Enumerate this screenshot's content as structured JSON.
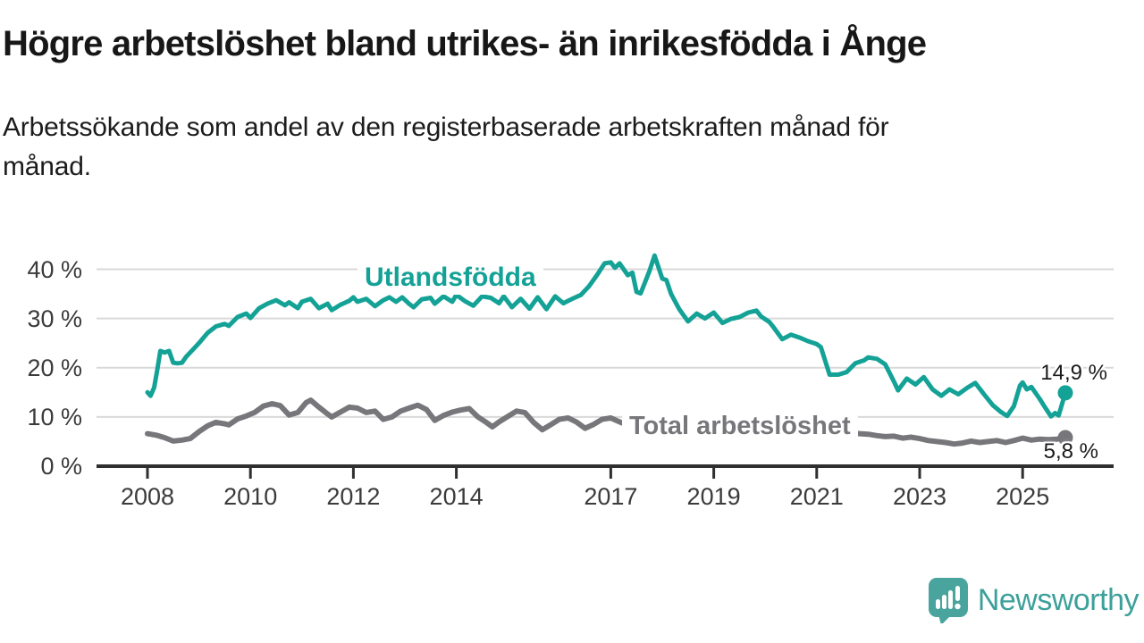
{
  "title": "Högre arbetslöshet bland utrikes- än inrikesfödda i Ånge",
  "subtitle_line1": "Arbetssökande som andel av den registerbaserade arbetskraften månad för",
  "subtitle_line2": "månad.",
  "logo": {
    "text": "Newsworthy"
  },
  "colors": {
    "teal": "#14a296",
    "grey": "#77777b",
    "logo_teal": "#49a49d",
    "axis_text": "#3b3b3b",
    "gridline": "#d9d9d9",
    "axis_line": "#2f2f2f",
    "title_text": "#171717"
  },
  "chart_data": {
    "type": "line",
    "title": "Högre arbetslöshet bland utrikes- än inrikesfödda i Ånge",
    "subtitle": "Arbetssökande som andel av den registerbaserade arbetskraften månad för månad.",
    "xlabel": "",
    "ylabel": "",
    "grid": "horizontal",
    "legend_position": "inline-labels",
    "x_unit": "decimal year, monthly data 2008 - late 2025",
    "y_unit": "percent of registered labour force",
    "ylim": [
      0,
      45
    ],
    "xlim": [
      2007.1,
      2026.7
    ],
    "y_ticks": [
      0,
      10,
      20,
      30,
      40
    ],
    "y_tick_labels": [
      "0 %",
      "10 %",
      "20 %",
      "30 %",
      "40 %"
    ],
    "x_ticks": [
      2008,
      2010,
      2012,
      2014,
      2017,
      2019,
      2021,
      2023,
      2025
    ],
    "x_tick_labels": [
      "2008",
      "2010",
      "2012",
      "2014",
      "2017",
      "2019",
      "2021",
      "2023",
      "2025"
    ],
    "series": [
      {
        "name": "Utlandsfödda",
        "color": "#14a296",
        "end_value": 14.9,
        "end_label": "14,9 %",
        "points": [
          [
            2008.0,
            15.0
          ],
          [
            2008.06,
            14.3
          ],
          [
            2008.13,
            16.0
          ],
          [
            2008.19,
            19.5
          ],
          [
            2008.25,
            23.4
          ],
          [
            2008.33,
            23.1
          ],
          [
            2008.42,
            23.4
          ],
          [
            2008.5,
            21.0
          ],
          [
            2008.58,
            20.9
          ],
          [
            2008.67,
            21.0
          ],
          [
            2008.75,
            22.2
          ],
          [
            2008.83,
            23.1
          ],
          [
            2008.92,
            24.1
          ],
          [
            2009.0,
            25.0
          ],
          [
            2009.17,
            27.1
          ],
          [
            2009.33,
            28.4
          ],
          [
            2009.5,
            28.9
          ],
          [
            2009.58,
            28.5
          ],
          [
            2009.75,
            30.3
          ],
          [
            2009.92,
            31.0
          ],
          [
            2010.0,
            30.1
          ],
          [
            2010.17,
            32.1
          ],
          [
            2010.33,
            33.0
          ],
          [
            2010.5,
            33.7
          ],
          [
            2010.67,
            32.7
          ],
          [
            2010.75,
            33.3
          ],
          [
            2010.92,
            32.1
          ],
          [
            2011.0,
            33.4
          ],
          [
            2011.17,
            34.0
          ],
          [
            2011.33,
            32.1
          ],
          [
            2011.5,
            33.0
          ],
          [
            2011.58,
            31.7
          ],
          [
            2011.75,
            32.8
          ],
          [
            2011.92,
            33.6
          ],
          [
            2012.0,
            34.3
          ],
          [
            2012.08,
            33.4
          ],
          [
            2012.25,
            34.0
          ],
          [
            2012.42,
            32.5
          ],
          [
            2012.58,
            33.7
          ],
          [
            2012.7,
            34.3
          ],
          [
            2012.83,
            33.4
          ],
          [
            2012.95,
            34.3
          ],
          [
            2013.08,
            33.0
          ],
          [
            2013.17,
            32.3
          ],
          [
            2013.33,
            33.9
          ],
          [
            2013.5,
            34.2
          ],
          [
            2013.58,
            33.0
          ],
          [
            2013.75,
            34.5
          ],
          [
            2013.92,
            33.4
          ],
          [
            2014.0,
            34.8
          ],
          [
            2014.17,
            33.5
          ],
          [
            2014.33,
            32.6
          ],
          [
            2014.5,
            34.5
          ],
          [
            2014.67,
            34.2
          ],
          [
            2014.83,
            33.1
          ],
          [
            2014.92,
            34.5
          ],
          [
            2015.08,
            32.3
          ],
          [
            2015.25,
            34.0
          ],
          [
            2015.42,
            32.0
          ],
          [
            2015.58,
            34.3
          ],
          [
            2015.75,
            31.9
          ],
          [
            2015.92,
            34.5
          ],
          [
            2016.08,
            33.1
          ],
          [
            2016.25,
            34.0
          ],
          [
            2016.42,
            34.8
          ],
          [
            2016.58,
            36.6
          ],
          [
            2016.75,
            39.1
          ],
          [
            2016.88,
            41.2
          ],
          [
            2017.0,
            41.4
          ],
          [
            2017.08,
            40.3
          ],
          [
            2017.17,
            41.2
          ],
          [
            2017.33,
            38.8
          ],
          [
            2017.42,
            39.3
          ],
          [
            2017.5,
            35.4
          ],
          [
            2017.58,
            35.1
          ],
          [
            2017.75,
            39.6
          ],
          [
            2017.85,
            42.8
          ],
          [
            2017.94,
            40.0
          ],
          [
            2018.0,
            38.1
          ],
          [
            2018.08,
            37.8
          ],
          [
            2018.17,
            35.0
          ],
          [
            2018.33,
            31.9
          ],
          [
            2018.5,
            29.4
          ],
          [
            2018.67,
            31.0
          ],
          [
            2018.83,
            30.0
          ],
          [
            2019.0,
            31.2
          ],
          [
            2019.17,
            29.1
          ],
          [
            2019.33,
            29.9
          ],
          [
            2019.5,
            30.3
          ],
          [
            2019.67,
            31.2
          ],
          [
            2019.83,
            31.6
          ],
          [
            2019.92,
            30.4
          ],
          [
            2020.08,
            29.3
          ],
          [
            2020.17,
            28.1
          ],
          [
            2020.33,
            25.8
          ],
          [
            2020.5,
            26.7
          ],
          [
            2020.67,
            26.1
          ],
          [
            2020.83,
            25.4
          ],
          [
            2021.0,
            24.8
          ],
          [
            2021.08,
            24.2
          ],
          [
            2021.25,
            18.6
          ],
          [
            2021.42,
            18.6
          ],
          [
            2021.58,
            19.1
          ],
          [
            2021.75,
            20.9
          ],
          [
            2021.92,
            21.5
          ],
          [
            2022.0,
            22.1
          ],
          [
            2022.17,
            21.8
          ],
          [
            2022.33,
            20.7
          ],
          [
            2022.5,
            17.2
          ],
          [
            2022.58,
            15.4
          ],
          [
            2022.75,
            17.8
          ],
          [
            2022.92,
            16.6
          ],
          [
            2023.08,
            18.1
          ],
          [
            2023.25,
            15.6
          ],
          [
            2023.42,
            14.3
          ],
          [
            2023.58,
            15.6
          ],
          [
            2023.75,
            14.6
          ],
          [
            2023.92,
            15.9
          ],
          [
            2024.08,
            16.9
          ],
          [
            2024.25,
            14.6
          ],
          [
            2024.42,
            12.4
          ],
          [
            2024.58,
            11.0
          ],
          [
            2024.7,
            10.2
          ],
          [
            2024.83,
            12.2
          ],
          [
            2024.95,
            16.4
          ],
          [
            2025.0,
            17.0
          ],
          [
            2025.08,
            15.6
          ],
          [
            2025.17,
            16.1
          ],
          [
            2025.33,
            13.7
          ],
          [
            2025.42,
            12.2
          ],
          [
            2025.55,
            10.1
          ],
          [
            2025.63,
            10.8
          ],
          [
            2025.7,
            10.3
          ],
          [
            2025.83,
            14.9
          ]
        ]
      },
      {
        "name": "Total arbetslöshet",
        "color": "#77777b",
        "end_value": 5.8,
        "end_label": "5,8 %",
        "points": [
          [
            2008.0,
            6.6
          ],
          [
            2008.17,
            6.3
          ],
          [
            2008.33,
            5.8
          ],
          [
            2008.5,
            5.1
          ],
          [
            2008.67,
            5.3
          ],
          [
            2008.83,
            5.6
          ],
          [
            2009.0,
            7.0
          ],
          [
            2009.17,
            8.2
          ],
          [
            2009.33,
            8.9
          ],
          [
            2009.5,
            8.6
          ],
          [
            2009.58,
            8.4
          ],
          [
            2009.75,
            9.6
          ],
          [
            2009.92,
            10.2
          ],
          [
            2010.08,
            10.9
          ],
          [
            2010.25,
            12.2
          ],
          [
            2010.42,
            12.7
          ],
          [
            2010.58,
            12.3
          ],
          [
            2010.75,
            10.4
          ],
          [
            2010.92,
            10.9
          ],
          [
            2011.08,
            12.9
          ],
          [
            2011.17,
            13.4
          ],
          [
            2011.33,
            12.0
          ],
          [
            2011.5,
            10.6
          ],
          [
            2011.58,
            10.0
          ],
          [
            2011.75,
            11.0
          ],
          [
            2011.92,
            12.0
          ],
          [
            2012.08,
            11.8
          ],
          [
            2012.25,
            10.9
          ],
          [
            2012.42,
            11.2
          ],
          [
            2012.58,
            9.5
          ],
          [
            2012.75,
            10.0
          ],
          [
            2012.92,
            11.2
          ],
          [
            2013.08,
            11.8
          ],
          [
            2013.25,
            12.4
          ],
          [
            2013.42,
            11.5
          ],
          [
            2013.58,
            9.3
          ],
          [
            2013.75,
            10.3
          ],
          [
            2013.92,
            11.0
          ],
          [
            2014.08,
            11.4
          ],
          [
            2014.25,
            11.7
          ],
          [
            2014.42,
            10.0
          ],
          [
            2014.58,
            8.9
          ],
          [
            2014.7,
            8.0
          ],
          [
            2014.83,
            9.0
          ],
          [
            2015.0,
            10.1
          ],
          [
            2015.17,
            11.2
          ],
          [
            2015.33,
            10.9
          ],
          [
            2015.5,
            8.9
          ],
          [
            2015.67,
            7.4
          ],
          [
            2015.83,
            8.4
          ],
          [
            2016.0,
            9.5
          ],
          [
            2016.17,
            9.8
          ],
          [
            2016.33,
            9.0
          ],
          [
            2016.5,
            7.7
          ],
          [
            2016.67,
            8.5
          ],
          [
            2016.83,
            9.5
          ],
          [
            2017.0,
            9.8
          ],
          [
            2017.17,
            9.0
          ],
          [
            2017.33,
            8.3
          ],
          [
            2017.5,
            8.0
          ],
          [
            2017.67,
            8.8
          ],
          [
            2017.83,
            9.2
          ],
          [
            2018.0,
            9.0
          ],
          [
            2018.17,
            8.2
          ],
          [
            2018.33,
            7.6
          ],
          [
            2018.5,
            7.2
          ],
          [
            2018.67,
            7.8
          ],
          [
            2018.83,
            8.0
          ],
          [
            2019.0,
            8.0
          ],
          [
            2019.17,
            7.4
          ],
          [
            2019.33,
            7.0
          ],
          [
            2019.5,
            7.2
          ],
          [
            2019.67,
            7.6
          ],
          [
            2019.83,
            7.8
          ],
          [
            2020.0,
            8.2
          ],
          [
            2020.17,
            9.0
          ],
          [
            2020.33,
            9.4
          ],
          [
            2020.5,
            9.2
          ],
          [
            2020.67,
            8.8
          ],
          [
            2020.83,
            8.6
          ],
          [
            2021.0,
            8.4
          ],
          [
            2021.17,
            8.0
          ],
          [
            2021.33,
            7.4
          ],
          [
            2021.5,
            7.0
          ],
          [
            2021.67,
            6.8
          ],
          [
            2021.83,
            6.6
          ],
          [
            2022.0,
            6.5
          ],
          [
            2022.17,
            6.2
          ],
          [
            2022.33,
            6.0
          ],
          [
            2022.5,
            6.1
          ],
          [
            2022.67,
            5.7
          ],
          [
            2022.83,
            5.9
          ],
          [
            2023.0,
            5.6
          ],
          [
            2023.17,
            5.2
          ],
          [
            2023.33,
            5.0
          ],
          [
            2023.5,
            4.8
          ],
          [
            2023.67,
            4.5
          ],
          [
            2023.83,
            4.7
          ],
          [
            2024.0,
            5.1
          ],
          [
            2024.17,
            4.8
          ],
          [
            2024.33,
            5.0
          ],
          [
            2024.5,
            5.2
          ],
          [
            2024.67,
            4.8
          ],
          [
            2024.83,
            5.2
          ],
          [
            2025.0,
            5.7
          ],
          [
            2025.17,
            5.3
          ],
          [
            2025.33,
            5.5
          ],
          [
            2025.5,
            5.4
          ],
          [
            2025.67,
            5.5
          ],
          [
            2025.83,
            5.8
          ]
        ]
      }
    ]
  }
}
